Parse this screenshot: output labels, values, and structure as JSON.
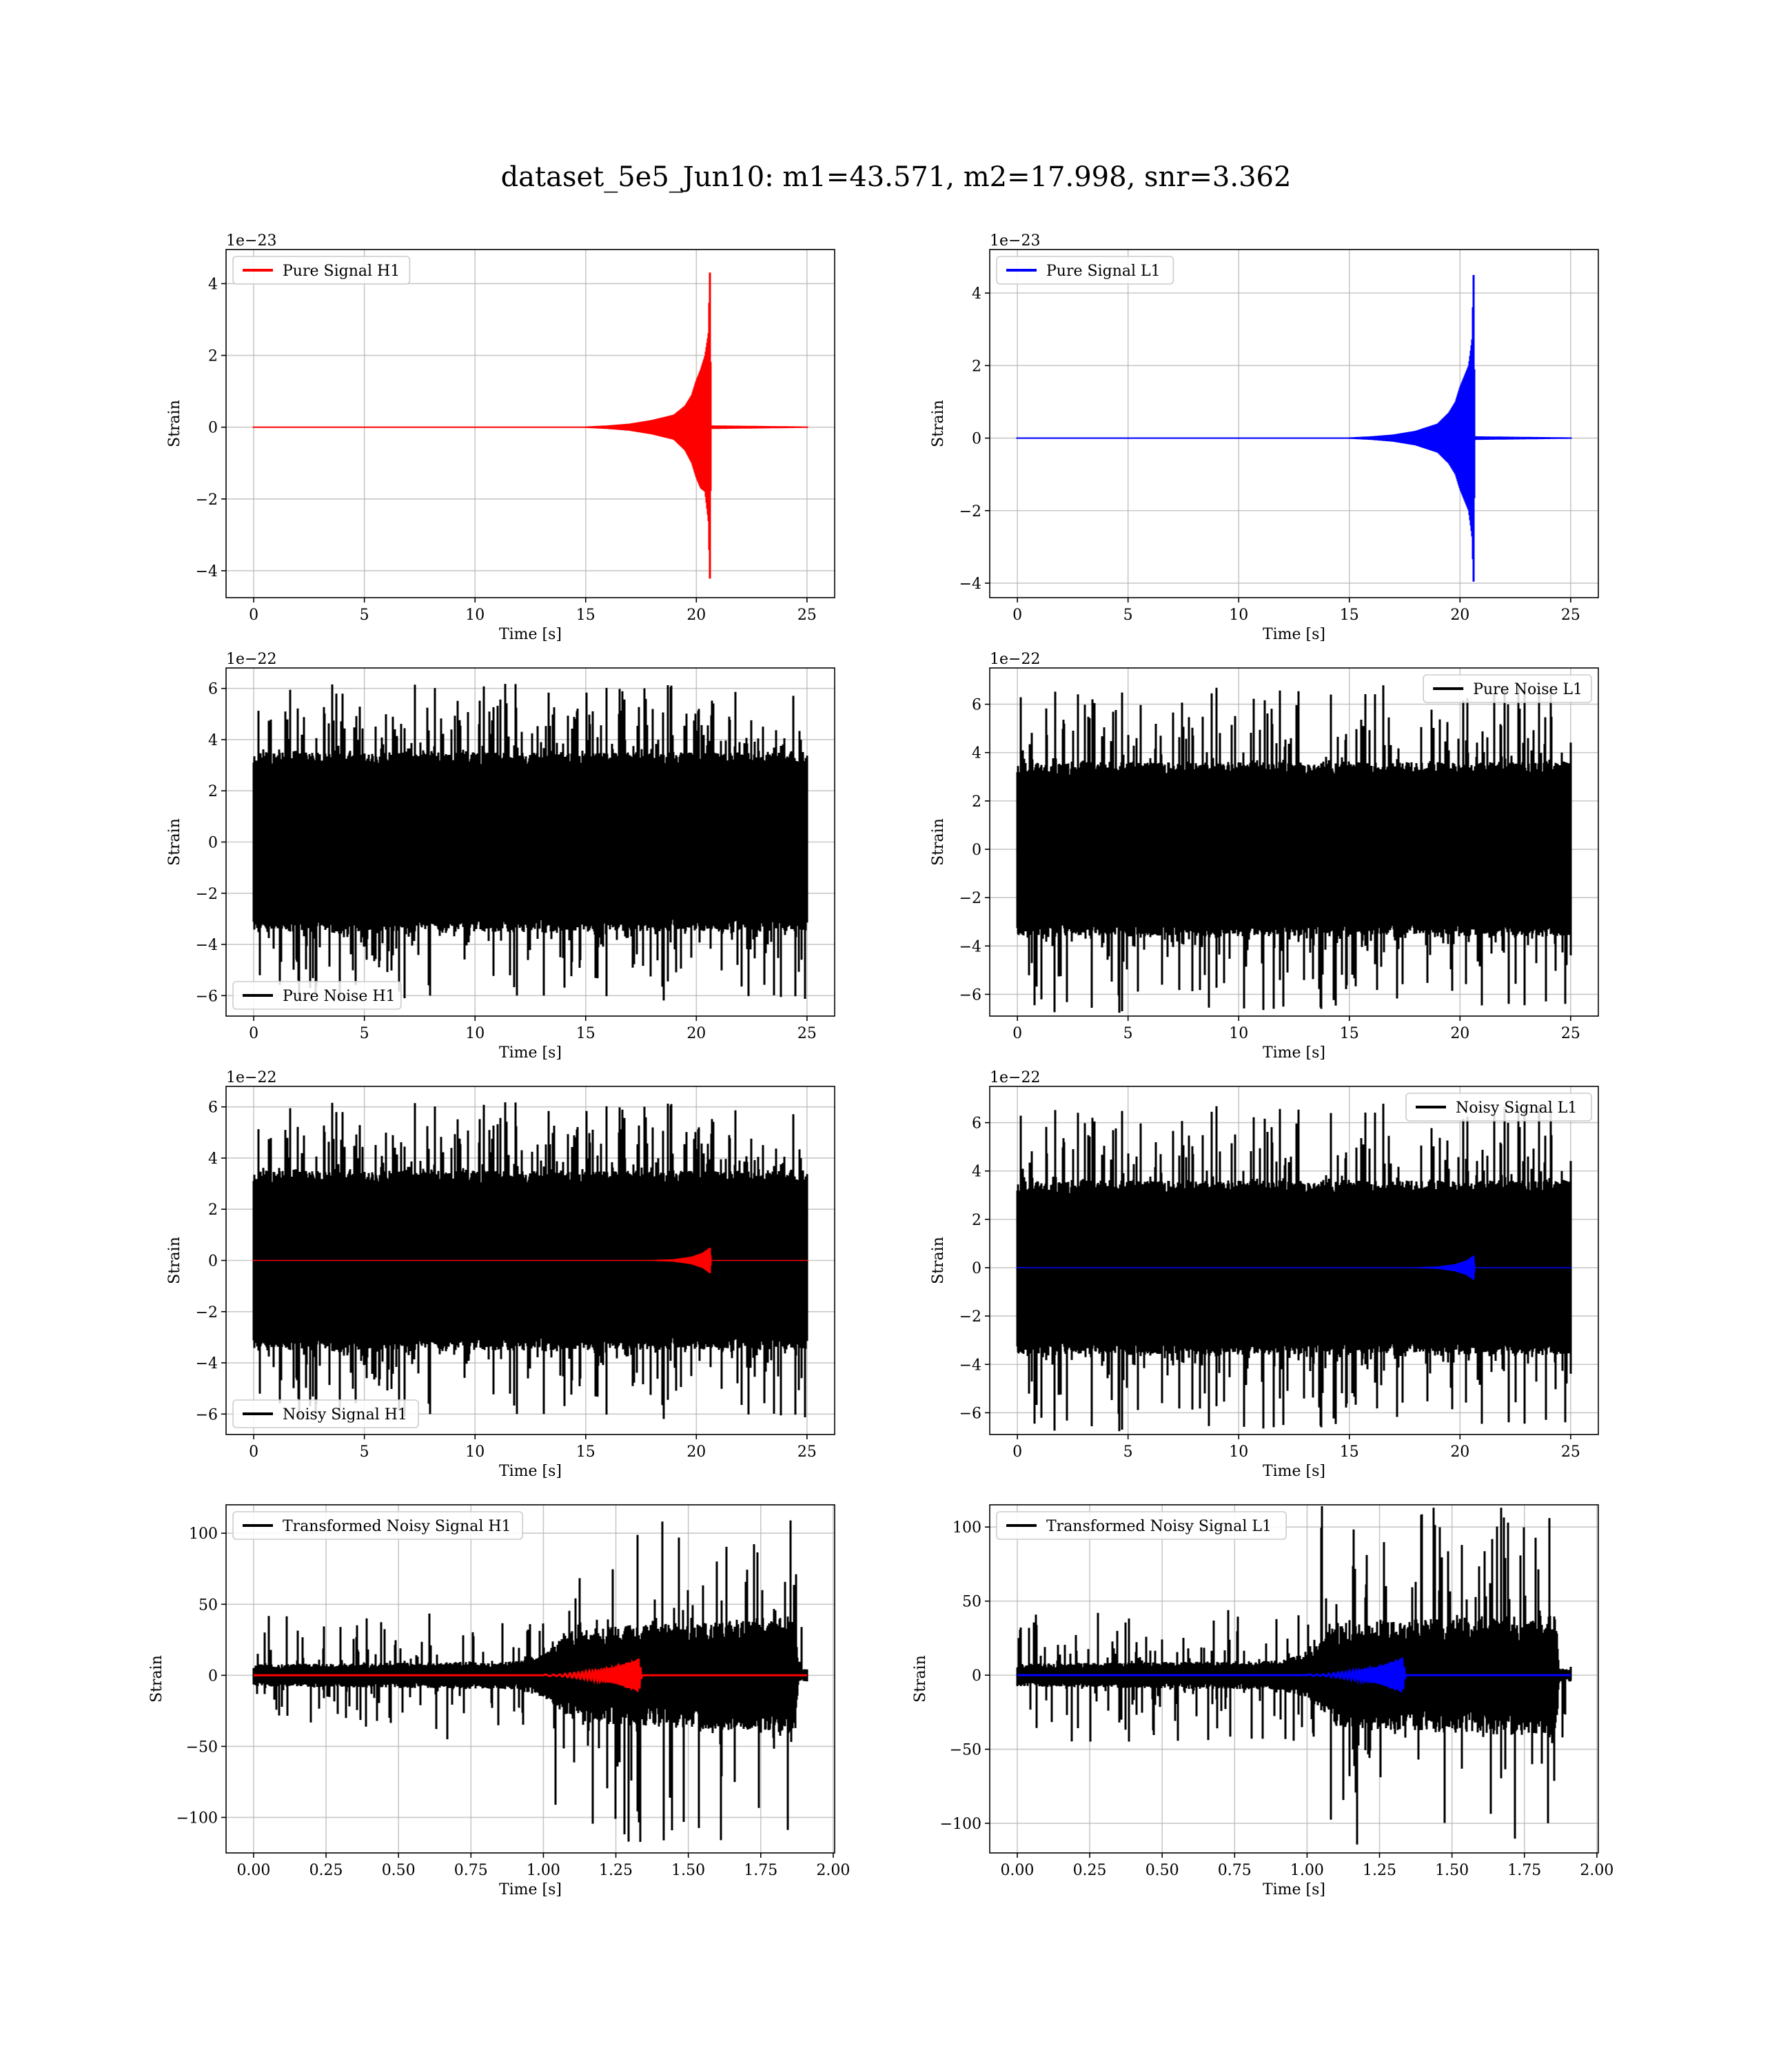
{
  "figure": {
    "title": "dataset_5e5_Jun10: m1=43.571, m2=17.998, snr=3.362"
  },
  "chart_data": [
    {
      "id": "pure-signal-h1",
      "type": "line",
      "xlabel": "Time [s]",
      "ylabel": "Strain",
      "offset_text": "1e−23",
      "xlim": [
        -1.25,
        26.25
      ],
      "ylim": [
        -4.75,
        4.95
      ],
      "xticks": [
        0,
        5,
        10,
        15,
        20,
        25
      ],
      "xtick_labels": [
        "0",
        "5",
        "10",
        "15",
        "20",
        "25"
      ],
      "yticks": [
        -4,
        -2,
        0,
        2,
        4
      ],
      "ytick_labels": [
        "−4",
        "−2",
        "0",
        "2",
        "4"
      ],
      "grid": true,
      "legend_position": "upper-left",
      "series": [
        {
          "name": "Pure Signal H1",
          "color": "#ff0000",
          "kind": "envelope",
          "points": [
            [
              0,
              0.02,
              -0.02
            ],
            [
              15.0,
              0.02,
              -0.02
            ],
            [
              16.0,
              0.05,
              -0.05
            ],
            [
              17.0,
              0.1,
              -0.1
            ],
            [
              18.0,
              0.2,
              -0.2
            ],
            [
              19.0,
              0.35,
              -0.35
            ],
            [
              19.5,
              0.6,
              -0.65
            ],
            [
              19.8,
              0.9,
              -1.0
            ],
            [
              20.0,
              1.3,
              -1.4
            ],
            [
              20.2,
              1.6,
              -1.7
            ],
            [
              20.4,
              2.0,
              -1.8
            ],
            [
              20.55,
              2.6,
              -2.6
            ],
            [
              20.62,
              4.5,
              -4.4
            ],
            [
              20.66,
              0.05,
              -0.05
            ],
            [
              25.0,
              0.02,
              -0.02
            ]
          ]
        }
      ]
    },
    {
      "id": "pure-signal-l1",
      "type": "line",
      "xlabel": "Time [s]",
      "ylabel": "Strain",
      "offset_text": "1e−23",
      "xlim": [
        -1.25,
        26.25
      ],
      "ylim": [
        -4.4,
        5.2
      ],
      "xticks": [
        0,
        5,
        10,
        15,
        20,
        25
      ],
      "xtick_labels": [
        "0",
        "5",
        "10",
        "15",
        "20",
        "25"
      ],
      "yticks": [
        -4,
        -2,
        0,
        2,
        4
      ],
      "ytick_labels": [
        "−4",
        "−2",
        "0",
        "2",
        "4"
      ],
      "grid": true,
      "legend_position": "upper-left",
      "series": [
        {
          "name": "Pure Signal L1",
          "color": "#0000ff",
          "kind": "envelope",
          "points": [
            [
              0,
              0.02,
              -0.02
            ],
            [
              15.0,
              0.02,
              -0.02
            ],
            [
              16.0,
              0.05,
              -0.05
            ],
            [
              17.0,
              0.1,
              -0.1
            ],
            [
              18.0,
              0.2,
              -0.2
            ],
            [
              19.0,
              0.4,
              -0.4
            ],
            [
              19.5,
              0.7,
              -0.7
            ],
            [
              19.8,
              1.0,
              -1.0
            ],
            [
              20.0,
              1.4,
              -1.4
            ],
            [
              20.2,
              1.7,
              -1.7
            ],
            [
              20.4,
              2.0,
              -2.0
            ],
            [
              20.55,
              2.7,
              -2.7
            ],
            [
              20.62,
              4.7,
              -4.1
            ],
            [
              20.66,
              0.05,
              -0.05
            ],
            [
              25.0,
              0.02,
              -0.02
            ]
          ]
        }
      ]
    },
    {
      "id": "pure-noise-h1",
      "type": "line",
      "xlabel": "Time [s]",
      "ylabel": "Strain",
      "offset_text": "1e−22",
      "xlim": [
        -1.25,
        26.25
      ],
      "ylim": [
        -6.8,
        6.8
      ],
      "xticks": [
        0,
        5,
        10,
        15,
        20,
        25
      ],
      "xtick_labels": [
        "0",
        "5",
        "10",
        "15",
        "20",
        "25"
      ],
      "yticks": [
        -6,
        -4,
        -2,
        0,
        2,
        4,
        6
      ],
      "ytick_labels": [
        "−6",
        "−4",
        "−2",
        "0",
        "2",
        "4",
        "6"
      ],
      "grid": true,
      "legend_position": "lower-left",
      "series": [
        {
          "name": "Pure Noise H1",
          "color": "#000000",
          "kind": "noise",
          "x_range": [
            0,
            25
          ],
          "core": 3.5,
          "peak": 6.2,
          "seed": 11
        }
      ]
    },
    {
      "id": "pure-noise-l1",
      "type": "line",
      "xlabel": "Time [s]",
      "ylabel": "Strain",
      "offset_text": "1e−22",
      "xlim": [
        -1.25,
        26.25
      ],
      "ylim": [
        -6.9,
        7.5
      ],
      "xticks": [
        0,
        5,
        10,
        15,
        20,
        25
      ],
      "xtick_labels": [
        "0",
        "5",
        "10",
        "15",
        "20",
        "25"
      ],
      "yticks": [
        -6,
        -4,
        -2,
        0,
        2,
        4,
        6
      ],
      "ytick_labels": [
        "−6",
        "−4",
        "−2",
        "0",
        "2",
        "4",
        "6"
      ],
      "grid": true,
      "legend_position": "upper-right",
      "series": [
        {
          "name": "Pure Noise L1",
          "color": "#000000",
          "kind": "noise",
          "x_range": [
            0,
            25
          ],
          "core": 3.6,
          "peak": 6.8,
          "seed": 23
        }
      ]
    },
    {
      "id": "noisy-signal-h1",
      "type": "line",
      "xlabel": "Time [s]",
      "ylabel": "Strain",
      "offset_text": "1e−22",
      "xlim": [
        -1.25,
        26.25
      ],
      "ylim": [
        -6.8,
        6.8
      ],
      "xticks": [
        0,
        5,
        10,
        15,
        20,
        25
      ],
      "xtick_labels": [
        "0",
        "5",
        "10",
        "15",
        "20",
        "25"
      ],
      "yticks": [
        -6,
        -4,
        -2,
        0,
        2,
        4,
        6
      ],
      "ytick_labels": [
        "−6",
        "−4",
        "−2",
        "0",
        "2",
        "4",
        "6"
      ],
      "grid": true,
      "legend_position": "lower-left",
      "series": [
        {
          "name": "Noisy Signal H1",
          "color": "#000000",
          "kind": "noise",
          "x_range": [
            0,
            25
          ],
          "core": 3.5,
          "peak": 6.2,
          "seed": 11
        },
        {
          "color": "#ff0000",
          "kind": "envelope",
          "points": [
            [
              0,
              0.02,
              -0.02
            ],
            [
              18.0,
              0.02,
              -0.02
            ],
            [
              19.0,
              0.05,
              -0.05
            ],
            [
              19.8,
              0.15,
              -0.15
            ],
            [
              20.3,
              0.3,
              -0.3
            ],
            [
              20.55,
              0.45,
              -0.45
            ],
            [
              20.62,
              0.5,
              -0.5
            ],
            [
              20.66,
              0.02,
              -0.02
            ],
            [
              25.0,
              0.02,
              -0.02
            ]
          ]
        }
      ]
    },
    {
      "id": "noisy-signal-l1",
      "type": "line",
      "xlabel": "Time [s]",
      "ylabel": "Strain",
      "offset_text": "1e−22",
      "xlim": [
        -1.25,
        26.25
      ],
      "ylim": [
        -6.9,
        7.5
      ],
      "xticks": [
        0,
        5,
        10,
        15,
        20,
        25
      ],
      "xtick_labels": [
        "0",
        "5",
        "10",
        "15",
        "20",
        "25"
      ],
      "yticks": [
        -6,
        -4,
        -2,
        0,
        2,
        4,
        6
      ],
      "ytick_labels": [
        "−6",
        "−4",
        "−2",
        "0",
        "2",
        "4",
        "6"
      ],
      "grid": true,
      "legend_position": "upper-right",
      "series": [
        {
          "name": "Noisy Signal L1",
          "color": "#000000",
          "kind": "noise",
          "x_range": [
            0,
            25
          ],
          "core": 3.6,
          "peak": 6.8,
          "seed": 23
        },
        {
          "color": "#0000ff",
          "kind": "envelope",
          "points": [
            [
              0,
              0.02,
              -0.02
            ],
            [
              18.0,
              0.02,
              -0.02
            ],
            [
              19.0,
              0.05,
              -0.05
            ],
            [
              19.8,
              0.15,
              -0.15
            ],
            [
              20.3,
              0.3,
              -0.3
            ],
            [
              20.55,
              0.45,
              -0.45
            ],
            [
              20.62,
              0.5,
              -0.5
            ],
            [
              20.66,
              0.02,
              -0.02
            ],
            [
              25.0,
              0.02,
              -0.02
            ]
          ]
        }
      ]
    },
    {
      "id": "transformed-noisy-signal-h1",
      "type": "line",
      "xlabel": "Time [s]",
      "ylabel": "Strain",
      "offset_text": "",
      "xlim": [
        -0.095,
        2.005
      ],
      "ylim": [
        -125,
        120
      ],
      "xticks": [
        0,
        0.25,
        0.5,
        0.75,
        1.0,
        1.25,
        1.5,
        1.75,
        2.0
      ],
      "xtick_labels": [
        "0.00",
        "0.25",
        "0.50",
        "0.75",
        "1.00",
        "1.25",
        "1.50",
        "1.75",
        "2.00"
      ],
      "yticks": [
        -100,
        -50,
        0,
        50,
        100
      ],
      "ytick_labels": [
        "−100",
        "−50",
        "0",
        "50",
        "100"
      ],
      "grid": true,
      "legend_position": "upper-left",
      "series": [
        {
          "name": "Transformed Noisy Signal H1",
          "color": "#000000",
          "kind": "burst-noise",
          "x_range": [
            0,
            1.91
          ],
          "profile": [
            [
              0.0,
              7
            ],
            [
              0.9,
              9
            ],
            [
              1.0,
              14
            ],
            [
              1.1,
              30
            ],
            [
              1.87,
              38
            ],
            [
              1.88,
              4
            ],
            [
              1.91,
              4
            ]
          ],
          "peak": 119,
          "seed": 37
        },
        {
          "color": "#ff0000",
          "kind": "chirp",
          "x_range": [
            0,
            1.91
          ],
          "profile": [
            [
              0,
              0.5
            ],
            [
              1.05,
              0.5
            ],
            [
              1.15,
              3
            ],
            [
              1.25,
              6
            ],
            [
              1.3,
              10
            ],
            [
              1.33,
              12
            ],
            [
              1.34,
              0.5
            ],
            [
              1.91,
              0.5
            ]
          ]
        }
      ]
    },
    {
      "id": "transformed-noisy-signal-l1",
      "type": "line",
      "xlabel": "Time [s]",
      "ylabel": "Strain",
      "offset_text": "",
      "xlim": [
        -0.095,
        2.005
      ],
      "ylim": [
        -120,
        115
      ],
      "xticks": [
        0,
        0.25,
        0.5,
        0.75,
        1.0,
        1.25,
        1.5,
        1.75,
        2.0
      ],
      "xtick_labels": [
        "0.00",
        "0.25",
        "0.50",
        "0.75",
        "1.00",
        "1.25",
        "1.50",
        "1.75",
        "2.00"
      ],
      "yticks": [
        -100,
        -50,
        0,
        50,
        100
      ],
      "ytick_labels": [
        "−100",
        "−50",
        "0",
        "50",
        "100"
      ],
      "grid": true,
      "legend_position": "upper-left",
      "series": [
        {
          "name": "Transformed Noisy Signal L1",
          "color": "#000000",
          "kind": "burst-noise",
          "x_range": [
            0,
            1.91
          ],
          "profile": [
            [
              0.0,
              7
            ],
            [
              0.9,
              9
            ],
            [
              1.0,
              14
            ],
            [
              1.1,
              32
            ],
            [
              1.86,
              38
            ],
            [
              1.87,
              4
            ],
            [
              1.91,
              4
            ]
          ],
          "peak": 115,
          "seed": 51
        },
        {
          "color": "#0000ff",
          "kind": "chirp",
          "x_range": [
            0,
            1.91
          ],
          "profile": [
            [
              0,
              0.5
            ],
            [
              1.05,
              0.5
            ],
            [
              1.15,
              3
            ],
            [
              1.25,
              6
            ],
            [
              1.3,
              10
            ],
            [
              1.33,
              12
            ],
            [
              1.34,
              0.5
            ],
            [
              1.91,
              0.5
            ]
          ]
        }
      ]
    }
  ]
}
